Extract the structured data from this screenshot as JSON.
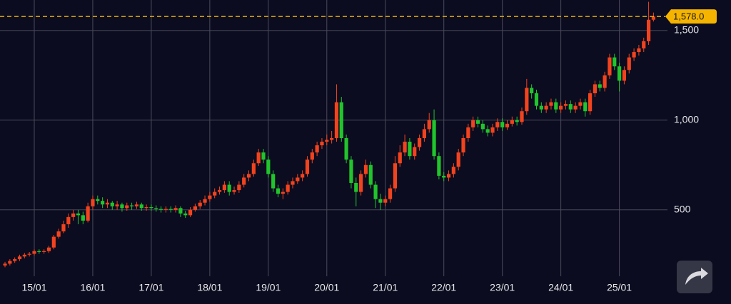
{
  "chart_data": {
    "type": "candlestick",
    "categories": [
      null,
      null,
      null,
      null,
      null,
      null,
      "15/01",
      null,
      null,
      null,
      null,
      null,
      null,
      null,
      null,
      null,
      null,
      null,
      "16/01",
      null,
      null,
      null,
      null,
      null,
      null,
      null,
      null,
      null,
      null,
      null,
      "17/01",
      null,
      null,
      null,
      null,
      null,
      null,
      null,
      null,
      null,
      null,
      null,
      "18/01",
      null,
      null,
      null,
      null,
      null,
      null,
      null,
      null,
      null,
      null,
      null,
      "19/01",
      null,
      null,
      null,
      null,
      null,
      null,
      null,
      null,
      null,
      null,
      null,
      "20/01",
      null,
      null,
      null,
      null,
      null,
      null,
      null,
      null,
      null,
      null,
      null,
      "21/01",
      null,
      null,
      null,
      null,
      null,
      null,
      null,
      null,
      null,
      null,
      null,
      "22/01",
      null,
      null,
      null,
      null,
      null,
      null,
      null,
      null,
      null,
      null,
      null,
      "23/01",
      null,
      null,
      null,
      null,
      null,
      null,
      null,
      null,
      null,
      null,
      null,
      "24/01",
      null,
      null,
      null,
      null,
      null,
      null,
      null,
      null,
      null,
      null,
      null,
      "25/01",
      null,
      null,
      null,
      null,
      null,
      null,
      null
    ],
    "open": [
      190,
      200,
      215,
      225,
      240,
      250,
      255,
      270,
      265,
      270,
      290,
      350,
      380,
      420,
      460,
      480,
      470,
      440,
      520,
      560,
      550,
      530,
      540,
      520,
      530,
      510,
      525,
      520,
      530,
      510,
      515,
      510,
      505,
      500,
      505,
      500,
      510,
      480,
      470,
      500,
      520,
      540,
      560,
      580,
      600,
      610,
      640,
      600,
      610,
      640,
      680,
      700,
      760,
      820,
      780,
      700,
      620,
      590,
      600,
      640,
      660,
      680,
      700,
      780,
      820,
      860,
      880,
      890,
      900,
      1100,
      900,
      780,
      650,
      600,
      700,
      750,
      640,
      560,
      540,
      560,
      620,
      760,
      820,
      880,
      800,
      850,
      900,
      950,
      1000,
      800,
      690,
      680,
      700,
      740,
      820,
      900,
      960,
      1000,
      980,
      950,
      930,
      960,
      990,
      960,
      980,
      1000,
      990,
      1050,
      1180,
      1150,
      1080,
      1060,
      1080,
      1100,
      1060,
      1080,
      1090,
      1060,
      1080,
      1100,
      1050,
      1150,
      1200,
      1180,
      1250,
      1350,
      1300,
      1220,
      1280,
      1350,
      1380,
      1400,
      1440,
      1560
    ],
    "high": [
      210,
      225,
      235,
      250,
      260,
      265,
      280,
      280,
      280,
      300,
      360,
      395,
      440,
      480,
      500,
      500,
      490,
      540,
      580,
      580,
      570,
      560,
      550,
      550,
      540,
      540,
      540,
      545,
      540,
      530,
      530,
      525,
      520,
      520,
      520,
      525,
      520,
      495,
      515,
      535,
      555,
      580,
      600,
      620,
      630,
      660,
      660,
      630,
      660,
      700,
      720,
      780,
      840,
      840,
      800,
      720,
      640,
      620,
      660,
      680,
      700,
      720,
      800,
      840,
      880,
      900,
      920,
      940,
      1200,
      1130,
      920,
      800,
      680,
      720,
      780,
      770,
      660,
      590,
      580,
      640,
      800,
      860,
      920,
      900,
      870,
      920,
      980,
      1040,
      1060,
      820,
      710,
      720,
      760,
      840,
      920,
      980,
      1020,
      1020,
      1000,
      970,
      980,
      1010,
      1010,
      1000,
      1020,
      1020,
      1070,
      1230,
      1200,
      1170,
      1100,
      1100,
      1120,
      1120,
      1100,
      1110,
      1110,
      1100,
      1120,
      1120,
      1170,
      1220,
      1220,
      1270,
      1370,
      1370,
      1320,
      1300,
      1370,
      1400,
      1420,
      1460,
      1660,
      1600
    ],
    "low": [
      180,
      190,
      205,
      215,
      230,
      240,
      245,
      255,
      255,
      260,
      280,
      340,
      370,
      400,
      440,
      420,
      420,
      430,
      500,
      530,
      510,
      510,
      500,
      500,
      490,
      495,
      500,
      505,
      495,
      495,
      495,
      490,
      485,
      485,
      485,
      485,
      460,
      455,
      460,
      490,
      505,
      525,
      545,
      565,
      585,
      595,
      580,
      585,
      595,
      625,
      660,
      685,
      745,
      760,
      680,
      600,
      570,
      560,
      585,
      620,
      645,
      660,
      685,
      760,
      800,
      840,
      860,
      870,
      880,
      880,
      760,
      620,
      520,
      580,
      680,
      620,
      510,
      500,
      520,
      540,
      600,
      740,
      800,
      780,
      780,
      830,
      880,
      930,
      780,
      670,
      660,
      660,
      680,
      720,
      800,
      880,
      940,
      960,
      930,
      910,
      910,
      940,
      940,
      945,
      965,
      970,
      975,
      1030,
      1120,
      1060,
      1040,
      1040,
      1060,
      1040,
      1040,
      1060,
      1040,
      1040,
      1060,
      1020,
      1030,
      1130,
      1160,
      1160,
      1230,
      1280,
      1160,
      1200,
      1260,
      1330,
      1360,
      1380,
      1420,
      1550
    ],
    "close": [
      200,
      215,
      225,
      240,
      250,
      255,
      270,
      265,
      270,
      290,
      350,
      380,
      420,
      460,
      480,
      470,
      440,
      520,
      560,
      550,
      530,
      540,
      520,
      530,
      510,
      525,
      520,
      530,
      510,
      515,
      510,
      505,
      500,
      505,
      500,
      510,
      480,
      470,
      500,
      520,
      540,
      560,
      580,
      600,
      610,
      640,
      600,
      610,
      640,
      680,
      700,
      760,
      820,
      780,
      700,
      620,
      590,
      600,
      640,
      660,
      680,
      700,
      780,
      820,
      860,
      880,
      890,
      900,
      1100,
      900,
      780,
      650,
      600,
      700,
      750,
      640,
      560,
      540,
      560,
      620,
      760,
      820,
      880,
      800,
      850,
      900,
      950,
      1000,
      800,
      690,
      680,
      700,
      740,
      820,
      900,
      960,
      1000,
      980,
      950,
      930,
      960,
      990,
      960,
      980,
      1000,
      990,
      1050,
      1180,
      1150,
      1080,
      1060,
      1080,
      1100,
      1060,
      1080,
      1090,
      1060,
      1080,
      1100,
      1050,
      1150,
      1200,
      1180,
      1250,
      1350,
      1300,
      1220,
      1280,
      1350,
      1380,
      1400,
      1440,
      1560,
      1578
    ],
    "up_color": "#f2431e",
    "down_color": "#21c42c",
    "ylim": [
      130,
      1670
    ],
    "yticks": [
      500,
      {
        "value": 1000,
        "label": "1,000"
      },
      {
        "value": 1500,
        "label": "1,500"
      }
    ],
    "grid": true,
    "current_price": {
      "value": 1578,
      "label": "1,578.0"
    },
    "current_price_color": "#f5b400"
  }
}
